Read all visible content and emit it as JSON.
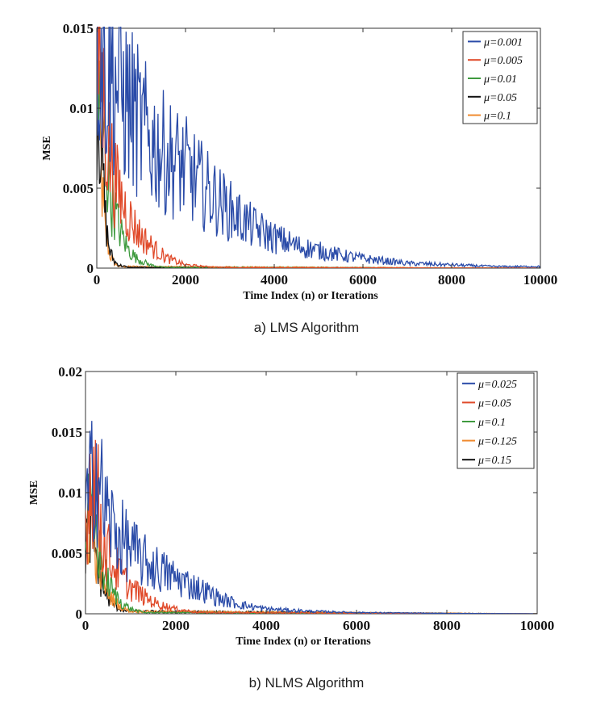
{
  "chart_data": [
    {
      "type": "line",
      "caption": "a) LMS Algorithm",
      "xlabel": "Time Index (n) or Iterations",
      "ylabel": "MSE",
      "xlim": [
        0,
        10000
      ],
      "ylim": [
        0,
        0.015
      ],
      "xticks": [
        0,
        2000,
        4000,
        6000,
        8000,
        10000
      ],
      "xtick_labels": [
        "0",
        "2000",
        "4000",
        "6000",
        "8000",
        "10000"
      ],
      "yticks": [
        0,
        0.005,
        0.01,
        0.015
      ],
      "ytick_labels": [
        "0",
        "0.005",
        "0.01",
        "0.015"
      ],
      "grid": false,
      "legend_position": "top-right",
      "series": [
        {
          "name": "μ=0.001",
          "color": "#2a4ba8",
          "x": [
            0,
            100,
            200,
            400,
            600,
            800,
            1000,
            1200,
            1500,
            1800,
            2000,
            2500,
            3000,
            3500,
            4000,
            4500,
            5000,
            5500,
            6000,
            7000,
            8000,
            9000,
            10000
          ],
          "y": [
            0.0145,
            0.0135,
            0.0125,
            0.0118,
            0.0108,
            0.0098,
            0.0088,
            0.008,
            0.0072,
            0.0066,
            0.0062,
            0.0048,
            0.0036,
            0.0026,
            0.0019,
            0.0014,
            0.0011,
            0.0008,
            0.0006,
            0.0003,
            0.0002,
            0.0001,
            0.0001
          ]
        },
        {
          "name": "μ=0.005",
          "color": "#e04a2a",
          "x": [
            0,
            100,
            200,
            300,
            400,
            600,
            800,
            1000,
            1300,
            1600,
            2000,
            2500,
            3000,
            10000
          ],
          "y": [
            0.014,
            0.012,
            0.009,
            0.007,
            0.0055,
            0.004,
            0.0028,
            0.002,
            0.0012,
            0.0006,
            0.0002,
            8e-05,
            3e-05,
            0.0
          ]
        },
        {
          "name": "μ=0.01",
          "color": "#3e9a3e",
          "x": [
            0,
            100,
            200,
            300,
            500,
            700,
            900,
            1200,
            1500,
            10000
          ],
          "y": [
            0.0125,
            0.0095,
            0.007,
            0.0048,
            0.0025,
            0.0012,
            0.0006,
            0.0002,
            5e-05,
            0.0
          ]
        },
        {
          "name": "μ=0.05",
          "color": "#111111",
          "x": [
            0,
            50,
            100,
            150,
            200,
            250,
            300,
            400,
            500,
            700,
            10000
          ],
          "y": [
            0.0115,
            0.0105,
            0.008,
            0.005,
            0.003,
            0.0018,
            0.001,
            0.0004,
            0.0002,
            5e-05,
            0.0
          ]
        },
        {
          "name": "μ=0.1",
          "color": "#f08a2e",
          "x": [
            0,
            50,
            100,
            150,
            200,
            300,
            400,
            500,
            10000
          ],
          "y": [
            0.011,
            0.009,
            0.006,
            0.0035,
            0.002,
            0.0008,
            0.0003,
            0.0001,
            0.0
          ]
        }
      ]
    },
    {
      "type": "line",
      "caption": "b) NLMS Algorithm",
      "xlabel": "Time Index (n) or Iterations",
      "ylabel": "MSE",
      "xlim": [
        0,
        10000
      ],
      "ylim": [
        0,
        0.02
      ],
      "xticks": [
        0,
        2000,
        4000,
        6000,
        8000,
        10000
      ],
      "xtick_labels": [
        "0",
        "2000",
        "4000",
        "6000",
        "8000",
        "10000"
      ],
      "yticks": [
        0,
        0.005,
        0.01,
        0.015,
        0.02
      ],
      "ytick_labels": [
        "0",
        "0.005",
        "0.01",
        "0.015",
        "0.02"
      ],
      "grid": false,
      "legend_position": "top-right",
      "series": [
        {
          "name": "μ=0.025",
          "color": "#2a4ba8",
          "x": [
            0,
            100,
            200,
            300,
            400,
            500,
            700,
            900,
            1100,
            1300,
            1600,
            1900,
            2200,
            2500,
            2800,
            3000,
            3500,
            4000,
            5000,
            6000,
            8000,
            10000
          ],
          "y": [
            0.008,
            0.01,
            0.013,
            0.011,
            0.009,
            0.008,
            0.0065,
            0.0058,
            0.005,
            0.0043,
            0.0037,
            0.0031,
            0.0026,
            0.0021,
            0.0016,
            0.0012,
            0.0007,
            0.0004,
            0.0002,
            0.0001,
            3e-05,
            0.0
          ]
        },
        {
          "name": "μ=0.05",
          "color": "#e04a2a",
          "x": [
            0,
            100,
            200,
            300,
            400,
            600,
            800,
            1000,
            1300,
            1600,
            2000,
            2500,
            10000
          ],
          "y": [
            0.0075,
            0.011,
            0.012,
            0.0085,
            0.006,
            0.0042,
            0.003,
            0.0022,
            0.0014,
            0.0008,
            0.0004,
            0.0001,
            0.0
          ]
        },
        {
          "name": "μ=0.1",
          "color": "#3e9a3e",
          "x": [
            0,
            100,
            200,
            300,
            400,
            600,
            800,
            1000,
            1300,
            10000
          ],
          "y": [
            0.007,
            0.0085,
            0.0075,
            0.005,
            0.0035,
            0.0018,
            0.0009,
            0.0004,
            0.0001,
            0.0
          ]
        },
        {
          "name": "μ=0.125",
          "color": "#f08a2e",
          "x": [
            0,
            100,
            200,
            300,
            400,
            600,
            800,
            1000,
            10000
          ],
          "y": [
            0.0065,
            0.008,
            0.006,
            0.004,
            0.0025,
            0.0012,
            0.0005,
            0.0002,
            0.0
          ]
        },
        {
          "name": "μ=0.15",
          "color": "#111111",
          "x": [
            0,
            100,
            200,
            300,
            400,
            500,
            700,
            900,
            10000
          ],
          "y": [
            0.006,
            0.0075,
            0.0055,
            0.0035,
            0.002,
            0.0012,
            0.0005,
            0.0002,
            0.0
          ]
        }
      ]
    }
  ]
}
